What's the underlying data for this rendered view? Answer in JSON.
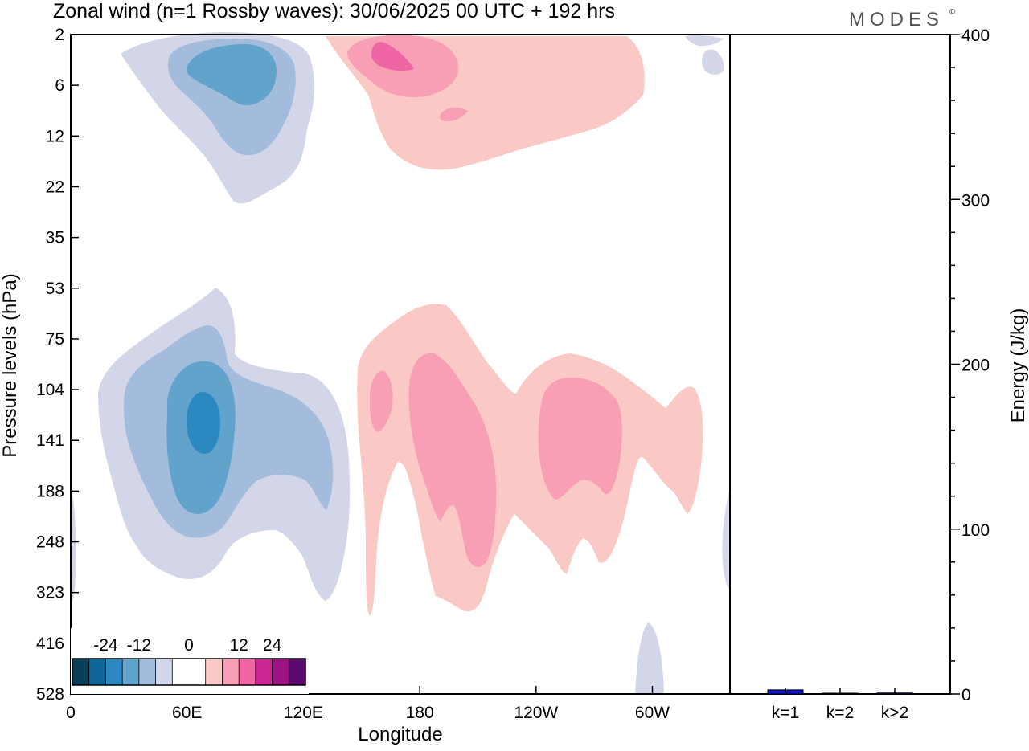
{
  "title": "Zonal wind (n=1 Rossby waves):  30/06/2025  00 UTC  + 192 hrs",
  "brand": "MODES",
  "brand_mark": "©",
  "chart_data": [
    {
      "type": "heatmap",
      "xlabel": "Longitude",
      "ylabel": "Pressure levels (hPa)",
      "x_ticks": [
        {
          "lon": 0,
          "label": "0"
        },
        {
          "lon": 60,
          "label": "60E"
        },
        {
          "lon": 120,
          "label": "120E"
        },
        {
          "lon": 180,
          "label": "180"
        },
        {
          "lon": 240,
          "label": "120W"
        },
        {
          "lon": 300,
          "label": "60W"
        }
      ],
      "xlim": [
        0,
        340
      ],
      "y_levels": [
        "2",
        "6",
        "12",
        "22",
        "35",
        "53",
        "75",
        "104",
        "141",
        "188",
        "248",
        "323",
        "416",
        "528"
      ],
      "colorbar": {
        "labels": [
          "-24",
          "-12",
          "0",
          "12",
          "24"
        ],
        "colors": [
          "#0a3f5c",
          "#0f6699",
          "#2b88c0",
          "#62a3cc",
          "#a3bcdc",
          "#d3d6e8",
          "#ffffff",
          "#ffffff",
          "#fbc9c5",
          "#f99fb5",
          "#f066a5",
          "#cc2595",
          "#9c1483",
          "#5c0a70"
        ]
      },
      "fills": {
        "neg1": "#d3d6e8",
        "neg2": "#a3bcdc",
        "neg3": "#62a3cc",
        "neg4": "#2b88c0",
        "pos1": "#fbc9c5",
        "pos2": "#f99fb5",
        "pos3": "#f066a5"
      }
    },
    {
      "type": "bar",
      "ylabel": "Energy (J/kg)",
      "ylim": [
        0,
        400
      ],
      "y_ticks": [
        "0",
        "100",
        "200",
        "300",
        "400"
      ],
      "categories": [
        "k=1",
        "k=2",
        "k>2"
      ],
      "values": [
        2.5,
        0.3,
        0.6
      ],
      "bar_color": "#1010d0"
    }
  ]
}
